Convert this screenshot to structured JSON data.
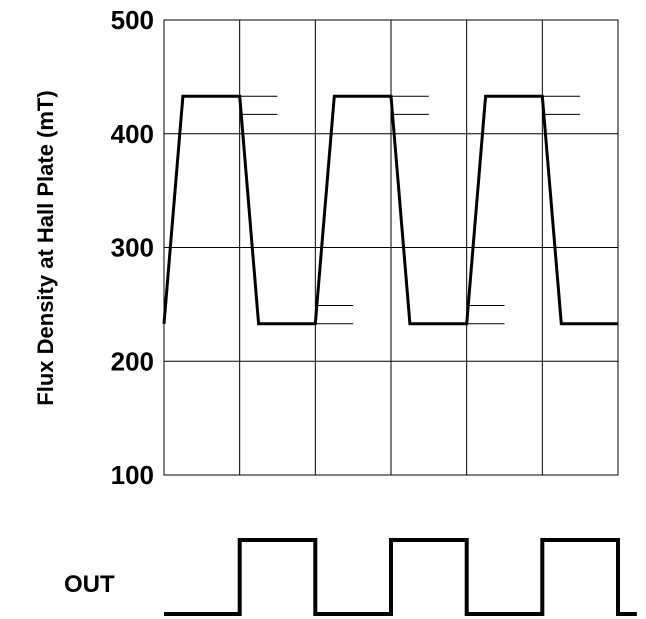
{
  "chart_data": {
    "type": "line",
    "ylabel": "Flux Density at Hall Plate (mT)",
    "ylim": [
      100,
      500
    ],
    "yticks": [
      100,
      200,
      300,
      400,
      500
    ],
    "xlim": [
      0,
      6
    ],
    "x_gridlines": [
      1,
      2,
      3,
      4,
      5
    ],
    "grid": true,
    "flux_series": {
      "x": [
        0.0,
        0.25,
        1.0,
        1.25,
        2.0,
        2.25,
        3.0,
        3.25,
        4.0,
        4.25,
        5.0,
        5.25,
        6.0
      ],
      "y": [
        233,
        433,
        433,
        233,
        233,
        433,
        433,
        233,
        233,
        433,
        433,
        233,
        233
      ]
    },
    "threshold_markers": [
      {
        "x_start": 1.0,
        "x_end": 1.5,
        "y": 433
      },
      {
        "x_start": 1.0,
        "x_end": 1.5,
        "y": 417
      },
      {
        "x_start": 3.0,
        "x_end": 3.5,
        "y": 433
      },
      {
        "x_start": 3.0,
        "x_end": 3.5,
        "y": 417
      },
      {
        "x_start": 5.0,
        "x_end": 5.5,
        "y": 433
      },
      {
        "x_start": 5.0,
        "x_end": 5.5,
        "y": 417
      },
      {
        "x_start": 2.0,
        "x_end": 2.5,
        "y": 249
      },
      {
        "x_start": 2.0,
        "x_end": 2.5,
        "y": 233
      },
      {
        "x_start": 4.0,
        "x_end": 4.5,
        "y": 249
      },
      {
        "x_start": 4.0,
        "x_end": 4.5,
        "y": 233
      }
    ],
    "out_label": "OUT",
    "out_signal": {
      "x": [
        0.0,
        1.0,
        1.0,
        2.0,
        2.0,
        3.0,
        3.0,
        4.0,
        4.0,
        5.0,
        5.0,
        6.0,
        6.0,
        6.25
      ],
      "level": [
        0,
        0,
        1,
        1,
        0,
        0,
        1,
        1,
        0,
        0,
        1,
        1,
        0,
        0
      ]
    }
  }
}
